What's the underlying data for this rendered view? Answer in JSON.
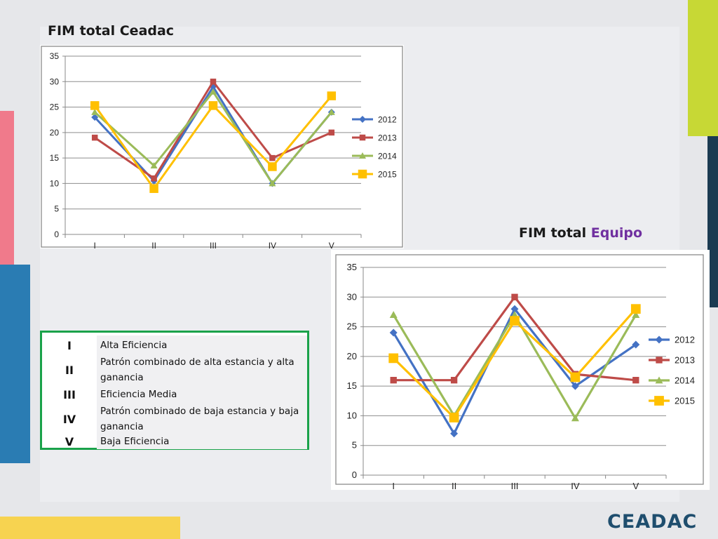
{
  "colors": {
    "series": [
      "#4472c4",
      "#be4b48",
      "#9bbb59",
      "#ffc000"
    ],
    "table_border": "#1aa24a",
    "accent_title": "#7030a0",
    "logo": "#1f4e6e"
  },
  "chart_top": {
    "title": "FIM total Ceadac"
  },
  "chart_bottom": {
    "title_prefix": "FIM total ",
    "title_accent": "Equipo"
  },
  "chart_data": [
    {
      "type": "line",
      "title": "FIM total Ceadac",
      "categories": [
        "I",
        "II",
        "III",
        "IV",
        "V"
      ],
      "ylim": [
        0,
        35
      ],
      "yticks": [
        0,
        5,
        10,
        15,
        20,
        25,
        30,
        35
      ],
      "grid": true,
      "legend": "right",
      "series": [
        {
          "name": "2012",
          "values": [
            23,
            10.5,
            29,
            10,
            24
          ],
          "marker": "diamond"
        },
        {
          "name": "2013",
          "values": [
            19,
            11,
            30,
            15,
            20
          ],
          "marker": "square"
        },
        {
          "name": "2014",
          "values": [
            24,
            13.5,
            28,
            10,
            24
          ],
          "marker": "triangle"
        },
        {
          "name": "2015",
          "values": [
            25.3,
            9,
            25.3,
            13.3,
            27.2
          ],
          "marker": "square-large"
        }
      ]
    },
    {
      "type": "line",
      "title": "FIM total Equipo",
      "categories": [
        "I",
        "II",
        "III",
        "IV",
        "V"
      ],
      "ylim": [
        0,
        35
      ],
      "yticks": [
        0,
        5,
        10,
        15,
        20,
        25,
        30,
        35
      ],
      "grid": true,
      "legend": "right",
      "series": [
        {
          "name": "2012",
          "values": [
            24,
            7,
            28,
            15,
            22
          ],
          "marker": "diamond"
        },
        {
          "name": "2013",
          "values": [
            16,
            16,
            30,
            17,
            16
          ],
          "marker": "square"
        },
        {
          "name": "2014",
          "values": [
            27,
            10,
            27,
            9.6,
            27
          ],
          "marker": "triangle"
        },
        {
          "name": "2015",
          "values": [
            19.7,
            9.7,
            26,
            16.5,
            28
          ],
          "marker": "square-large"
        }
      ]
    }
  ],
  "legend_table": [
    {
      "roman": "I",
      "description": "Alta  Eficiencia"
    },
    {
      "roman": "II",
      "description": "Patrón combinado de alta estancia y alta ganancia"
    },
    {
      "roman": "III",
      "description": "Eficiencia Media"
    },
    {
      "roman": "IV",
      "description": "Patrón combinado de baja estancia y baja ganancia"
    },
    {
      "roman": "V",
      "description": "Baja Eficiencia"
    }
  ],
  "logo": {
    "text": "CEADAC"
  }
}
